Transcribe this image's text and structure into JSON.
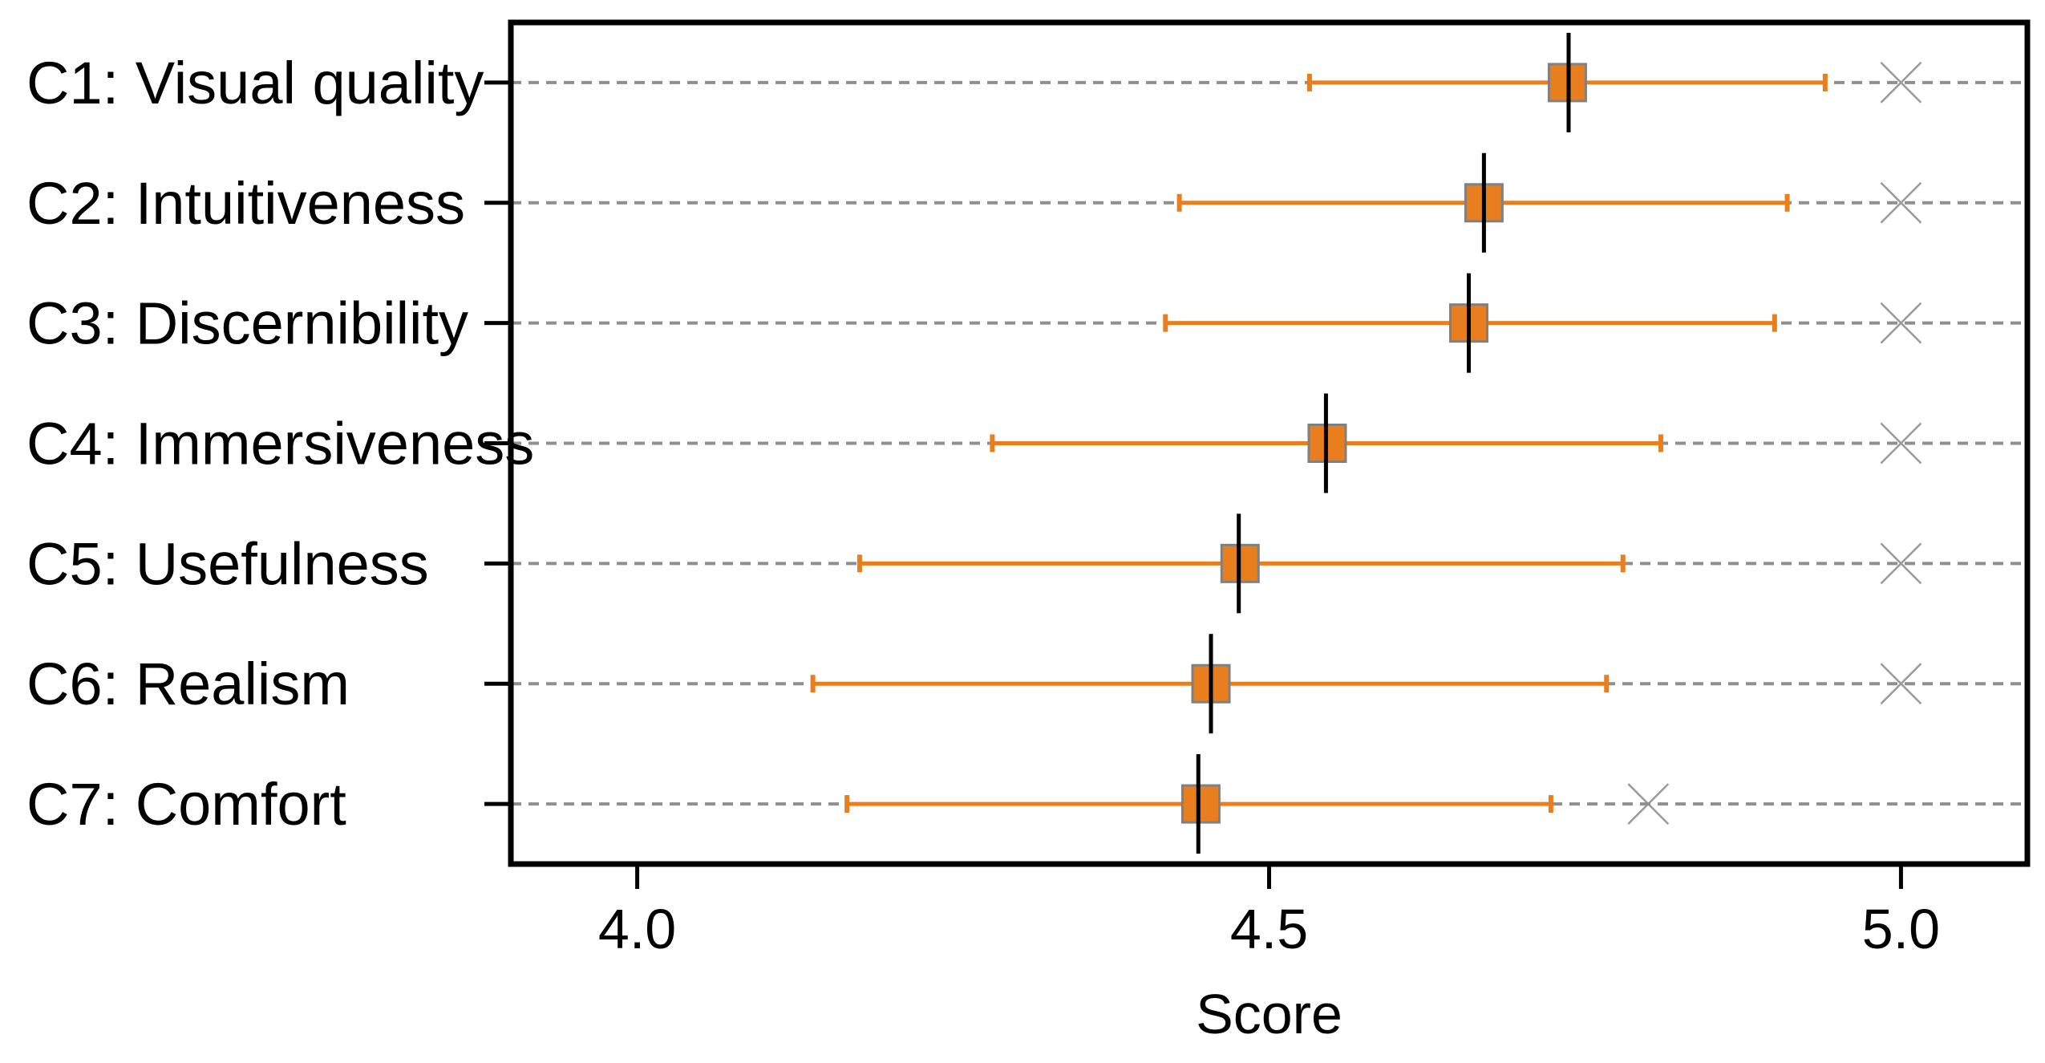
{
  "figure": {
    "background": "#ffffff"
  },
  "colors": {
    "marker_orange": "#e87e1e",
    "square_edge_gray": "#808080",
    "median_line_black": "#000000",
    "x_marker_gray": "#9a9a9a",
    "gridline_gray": "#8f8f8f",
    "frame_black": "#000000",
    "text_black": "#000000"
  },
  "chart_data": {
    "type": "scatter",
    "subtype": "horizontal_errorbar_dotplot",
    "title": "",
    "xlabel": "Score",
    "ylabel": "",
    "xlim": [
      3.9,
      5.1
    ],
    "x_ticks": [
      4.0,
      4.5,
      5.0
    ],
    "x_tick_labels": [
      "4.0",
      "4.5",
      "5.0"
    ],
    "grid": "horizontal dashed gridline per category row",
    "legend": "none",
    "categories": [
      "C1: Visual quality",
      "C2: Intuitiveness",
      "C3: Discernibility",
      "C4: Immersiveness",
      "C5: Usefulness",
      "C6: Realism",
      "C7: Comfort"
    ],
    "series": [
      {
        "name": "mean (orange square)",
        "marker": "square",
        "color": "#e87e1e",
        "values": [
          4.736,
          4.67,
          4.658,
          4.546,
          4.477,
          4.454,
          4.446
        ]
      },
      {
        "name": "95% CI (orange whisker with caps)",
        "marker": "errorbar",
        "color": "#e87e1e",
        "low": [
          4.532,
          4.429,
          4.418,
          4.281,
          4.176,
          4.139,
          4.166
        ],
        "high": [
          4.94,
          4.91,
          4.9,
          4.81,
          4.78,
          4.767,
          4.723
        ]
      },
      {
        "name": "median (black vertical line)",
        "marker": "vline",
        "color": "#000000",
        "values": [
          4.737,
          4.67,
          4.658,
          4.545,
          4.476,
          4.454,
          4.444
        ]
      },
      {
        "name": "reference (gray X)",
        "marker": "x",
        "color": "#9a9a9a",
        "values": [
          5.0,
          5.0,
          5.0,
          5.0,
          5.0,
          5.0,
          4.8
        ]
      }
    ]
  }
}
